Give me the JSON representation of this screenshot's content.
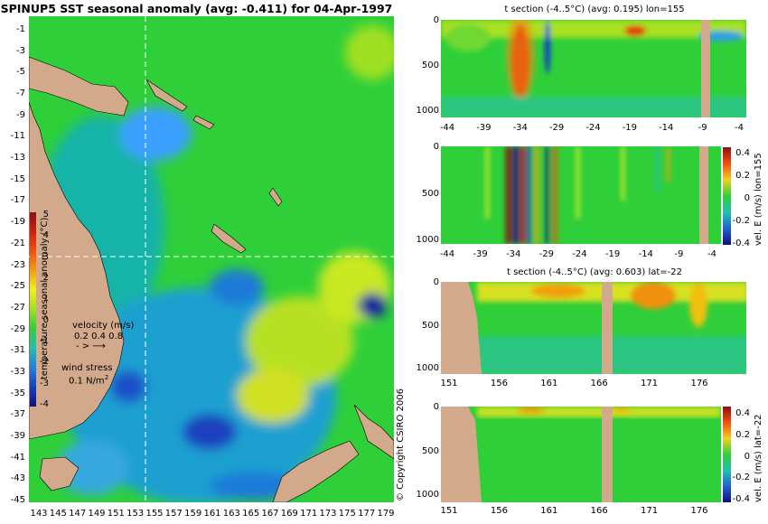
{
  "map": {
    "title": "SPINUP5 SST seasonal anomaly (avg: -0.411) for 04-Apr-1997",
    "lat_ticks": [
      "-1",
      "-3",
      "-5",
      "-7",
      "-9",
      "-11",
      "-13",
      "-15",
      "-17",
      "-19",
      "-21",
      "-23",
      "-25",
      "-27",
      "-29",
      "-31",
      "-33",
      "-35",
      "-37",
      "-39",
      "-41",
      "-43",
      "-45"
    ],
    "lon_ticks": [
      "143",
      "145",
      "147",
      "149",
      "151",
      "153",
      "155",
      "157",
      "159",
      "161",
      "163",
      "165",
      "167",
      "169",
      "171",
      "173",
      "175",
      "177",
      "179"
    ],
    "colorbar_label": "temperature seasonal anomaly (°C)",
    "colorbar_ticks": [
      "5",
      "4",
      "3",
      "2",
      "1",
      "0",
      "-1",
      "-2",
      "-3",
      "-4"
    ],
    "velocity_label": "velocity (m/s)",
    "velocity_scale": "0.2 0.4 0.8",
    "wind_label": "wind stress",
    "wind_scale": "0.1 N/m",
    "wind_scale_sup": "2",
    "copyright": "© Copyright CSIRO 2006"
  },
  "panels": {
    "p1": {
      "title": "t section (-4..5°C) (avg: 0.195) lon=155",
      "y_ticks": [
        "0",
        "500",
        "1000"
      ],
      "x_ticks": [
        "-44",
        "-39",
        "-34",
        "-29",
        "-24",
        "-19",
        "-14",
        "-9",
        "-4"
      ]
    },
    "p2": {
      "y_ticks": [
        "0",
        "500",
        "1000"
      ],
      "x_ticks": [
        "-44",
        "-39",
        "-34",
        "-29",
        "-24",
        "-19",
        "-14",
        "-9",
        "-4"
      ],
      "colorbar_label": "vel. E (m/s) lon=155",
      "colorbar_ticks": [
        "0.4",
        "0.2",
        "0",
        "-0.2",
        "-0.4"
      ]
    },
    "p3": {
      "title": "t section (-4..5°C) (avg: 0.603) lat=-22",
      "y_ticks": [
        "0",
        "500",
        "1000"
      ],
      "x_ticks": [
        "151",
        "156",
        "161",
        "166",
        "171",
        "176"
      ]
    },
    "p4": {
      "y_ticks": [
        "0",
        "500",
        "1000"
      ],
      "x_ticks": [
        "151",
        "156",
        "161",
        "166",
        "171",
        "176"
      ],
      "colorbar_label": "vel. E (m/s) lat=-22",
      "colorbar_ticks": [
        "0.4",
        "0.2",
        "0",
        "-0.2",
        "-0.4"
      ]
    }
  },
  "colors": {
    "land": "#d2a98b",
    "sea_base": "#2fcf3a",
    "cool": "#1f7fe0",
    "warm": "#f0d020"
  },
  "chart_data": [
    {
      "type": "heatmap",
      "title": "SPINUP5 SST seasonal anomaly (avg: -0.411) for 04-Apr-1997",
      "xlabel": "",
      "ylabel": "",
      "xlim": [
        143,
        180
      ],
      "ylim": [
        -45,
        0
      ],
      "colorbar": "temperature seasonal anomaly (°C)",
      "crange": [
        -4,
        5
      ],
      "crosshair": {
        "lon": 155,
        "lat": -22
      }
    },
    {
      "type": "heatmap",
      "title": "t section (-4..5°C) (avg: 0.195) lon=155",
      "xlim": [
        -45,
        0
      ],
      "ylim": [
        1050,
        0
      ]
    },
    {
      "type": "heatmap",
      "colorbar": "vel. E (m/s) lon=155",
      "crange": [
        -0.4,
        0.4
      ],
      "xlim": [
        -45,
        0
      ],
      "ylim": [
        1050,
        0
      ]
    },
    {
      "type": "heatmap",
      "title": "t section (-4..5°C) (avg: 0.603) lat=-22",
      "xlim": [
        150,
        180
      ],
      "ylim": [
        1050,
        0
      ]
    },
    {
      "type": "heatmap",
      "colorbar": "vel. E (m/s) lat=-22",
      "crange": [
        -0.4,
        0.4
      ],
      "xlim": [
        150,
        180
      ],
      "ylim": [
        1050,
        0
      ]
    }
  ]
}
